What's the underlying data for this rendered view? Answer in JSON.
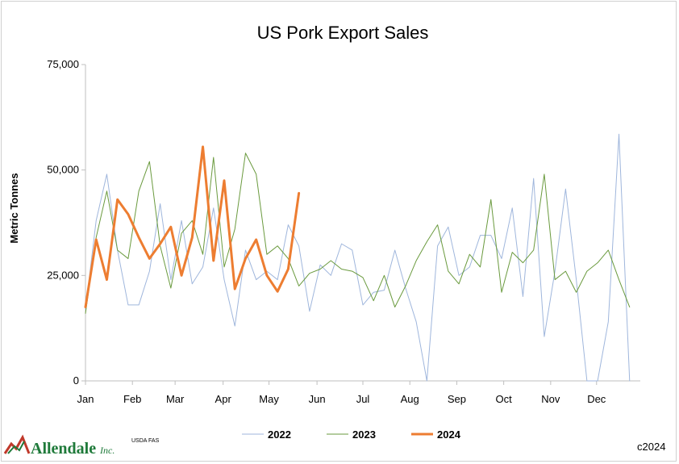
{
  "chart_data": {
    "type": "line",
    "title": "US Pork Export Sales",
    "ylabel": "Metric Tonnes",
    "ylim": [
      0,
      75000
    ],
    "yticks": [
      {
        "value": 0,
        "label": "0"
      },
      {
        "value": 25000,
        "label": "25,000"
      },
      {
        "value": 50000,
        "label": "50,000"
      },
      {
        "value": 75000,
        "label": "75,000"
      }
    ],
    "xlim": [
      0,
      52
    ],
    "xticks": [
      {
        "value": 0.0,
        "label": "Jan"
      },
      {
        "value": 4.4,
        "label": "Feb"
      },
      {
        "value": 8.4,
        "label": "Mar"
      },
      {
        "value": 12.9,
        "label": "Apr"
      },
      {
        "value": 17.2,
        "label": "May"
      },
      {
        "value": 21.7,
        "label": "Jun"
      },
      {
        "value": 26.0,
        "label": "Jul"
      },
      {
        "value": 30.4,
        "label": "Aug"
      },
      {
        "value": 34.8,
        "label": "Sep"
      },
      {
        "value": 39.2,
        "label": "Oct"
      },
      {
        "value": 43.6,
        "label": "Nov"
      },
      {
        "value": 47.9,
        "label": "Dec"
      }
    ],
    "legend_position": "bottom",
    "series": [
      {
        "name": "2022",
        "color": "#9fb6dc",
        "stroke_width": 1,
        "values": [
          17000,
          38000,
          49000,
          31000,
          18000,
          18000,
          26000,
          42000,
          24000,
          38000,
          23000,
          27000,
          41000,
          24000,
          13000,
          31000,
          24000,
          26000,
          24000,
          37000,
          32000,
          16500,
          27500,
          25000,
          32500,
          31000,
          18000,
          21000,
          21500,
          31000,
          22000,
          14000,
          0,
          32000,
          36500,
          25000,
          27000,
          34500,
          34500,
          29000,
          41000,
          20000,
          48000,
          10500,
          26000,
          45500,
          24000,
          0,
          0,
          14000,
          58500,
          0
        ]
      },
      {
        "name": "2023",
        "color": "#6a9a3e",
        "stroke_width": 1,
        "values": [
          16000,
          34000,
          45000,
          31000,
          29000,
          45000,
          52000,
          32000,
          22000,
          35000,
          38000,
          30000,
          53000,
          27000,
          36000,
          54000,
          49000,
          30000,
          32000,
          29000,
          22500,
          25500,
          26500,
          28500,
          26500,
          26000,
          24500,
          19000,
          25000,
          17500,
          22500,
          28500,
          33000,
          37000,
          26000,
          23000,
          30000,
          27000,
          43000,
          21000,
          30500,
          28000,
          31000,
          49000,
          24000,
          26000,
          21000,
          26000,
          28000,
          31000,
          24000,
          17500
        ]
      },
      {
        "name": "2024",
        "color": "#ed7d31",
        "stroke_width": 3,
        "values": [
          17500,
          33500,
          24000,
          43000,
          39500,
          34000,
          29000,
          32500,
          36500,
          25000,
          34000,
          55500,
          28500,
          47500,
          21800,
          29000,
          33500,
          25000,
          21200,
          26500,
          44500
        ]
      }
    ]
  },
  "source_note": "USDA FAS",
  "copyright": "c2024",
  "logo": {
    "name": "Allendale",
    "suffix": "Inc."
  }
}
